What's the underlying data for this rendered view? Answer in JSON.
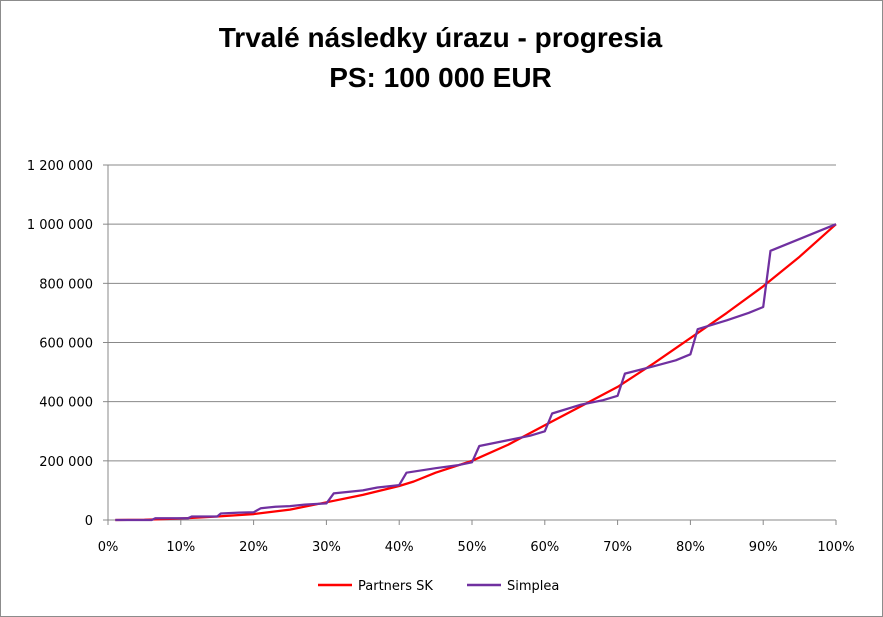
{
  "chart_data": {
    "type": "line",
    "title": "Trvalé následky úrazu - progresia",
    "subtitle": "PS: 100 000 EUR",
    "xlabel": "",
    "ylabel": "",
    "xlim": [
      0,
      100
    ],
    "ylim": [
      0,
      1200000
    ],
    "grid": true,
    "legend_position": "bottom",
    "x_tick_labels": [
      "0%",
      "10%",
      "20%",
      "30%",
      "40%",
      "50%",
      "60%",
      "70%",
      "80%",
      "90%",
      "100%"
    ],
    "y_tick_labels": [
      "0",
      "200 000",
      "400 000",
      "600 000",
      "800 000",
      "1 000 000",
      "1 200 000"
    ],
    "series": [
      {
        "name": "Partners SK",
        "color": "#ff0000",
        "points": [
          [
            1,
            0
          ],
          [
            5,
            1000
          ],
          [
            10,
            5000
          ],
          [
            15,
            12000
          ],
          [
            20,
            20000
          ],
          [
            25,
            35000
          ],
          [
            30,
            60000
          ],
          [
            35,
            85000
          ],
          [
            40,
            115000
          ],
          [
            42,
            130000
          ],
          [
            45,
            160000
          ],
          [
            50,
            200000
          ],
          [
            55,
            255000
          ],
          [
            60,
            320000
          ],
          [
            65,
            385000
          ],
          [
            70,
            450000
          ],
          [
            75,
            530000
          ],
          [
            80,
            615000
          ],
          [
            85,
            700000
          ],
          [
            90,
            790000
          ],
          [
            95,
            890000
          ],
          [
            100,
            1000000
          ]
        ]
      },
      {
        "name": "Simplea",
        "color": "#7030a0",
        "points": [
          [
            1,
            0
          ],
          [
            6,
            0
          ],
          [
            6.5,
            6000
          ],
          [
            11,
            6000
          ],
          [
            11.5,
            12000
          ],
          [
            15,
            12000
          ],
          [
            15.5,
            22000
          ],
          [
            18,
            25000
          ],
          [
            20,
            26000
          ],
          [
            21,
            40000
          ],
          [
            23,
            45000
          ],
          [
            25,
            47000
          ],
          [
            27,
            52000
          ],
          [
            30,
            56000
          ],
          [
            31,
            90000
          ],
          [
            35,
            100000
          ],
          [
            37,
            110000
          ],
          [
            40,
            118000
          ],
          [
            41,
            160000
          ],
          [
            45,
            175000
          ],
          [
            48,
            185000
          ],
          [
            50,
            195000
          ],
          [
            51,
            250000
          ],
          [
            55,
            270000
          ],
          [
            58,
            285000
          ],
          [
            60,
            300000
          ],
          [
            61,
            360000
          ],
          [
            65,
            390000
          ],
          [
            68,
            405000
          ],
          [
            70,
            420000
          ],
          [
            71,
            495000
          ],
          [
            75,
            520000
          ],
          [
            78,
            540000
          ],
          [
            80,
            560000
          ],
          [
            81,
            645000
          ],
          [
            85,
            675000
          ],
          [
            88,
            700000
          ],
          [
            90,
            720000
          ],
          [
            91,
            910000
          ],
          [
            100,
            1000000
          ]
        ]
      }
    ]
  }
}
